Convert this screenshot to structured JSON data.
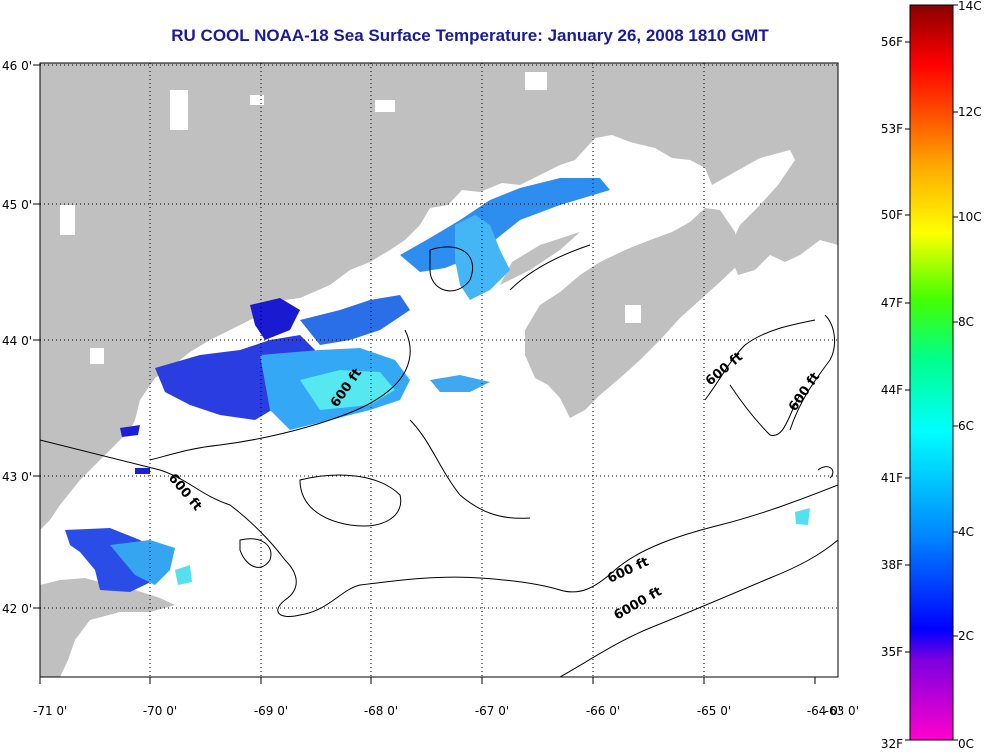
{
  "title": "RU COOL  NOAA-18  Sea Surface Temperature:  January 26, 2008 1810 GMT",
  "colors": {
    "land": "#c0c0c0",
    "ocean_clouds": "#ffffff",
    "title_text": "#1a1a9c",
    "grid": "#000000"
  },
  "map": {
    "longitude_ticks": [
      "-71 0'",
      "-70 0'",
      "-69 0'",
      "-68 0'",
      "-67 0'",
      "-66 0'",
      "-65 0'",
      "-64 0'",
      "-63 0'"
    ],
    "latitude_ticks": [
      "46 0'",
      "45 0'",
      "44 0'",
      "43 0'",
      "42 0'"
    ],
    "grid": "dotted",
    "isobath_labels": [
      "600 ft",
      "600 ft",
      "600 ft",
      "600 ft",
      "600 ft",
      "6000 ft"
    ]
  },
  "colorbar": {
    "celsius_labels": [
      "14C",
      "12C",
      "10C",
      "8C",
      "6C",
      "4C",
      "2C",
      "0C"
    ],
    "fahrenheit_labels": [
      "56F",
      "53F",
      "50F",
      "47F",
      "44F",
      "41F",
      "38F",
      "35F",
      "32F"
    ],
    "scale": "rainbow 0C (magenta) to 14C (dark red)"
  }
}
